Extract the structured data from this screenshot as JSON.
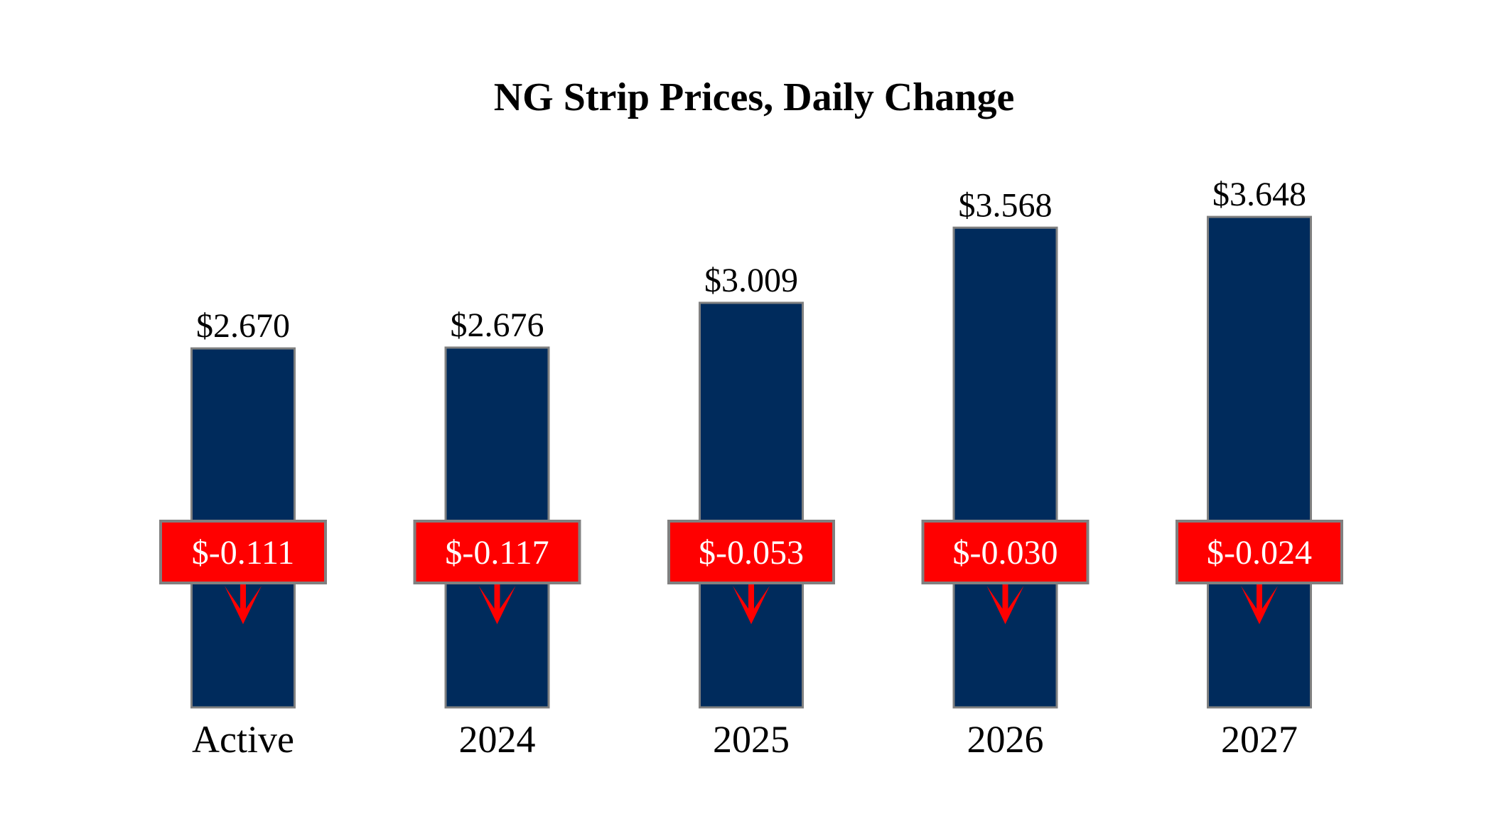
{
  "chart_data": {
    "type": "bar",
    "title": "NG Strip Prices, Daily Change",
    "categories": [
      "Active",
      "2024",
      "2025",
      "2026",
      "2027"
    ],
    "values": [
      2.67,
      2.676,
      3.009,
      3.568,
      3.648
    ],
    "value_labels": [
      "$2.670",
      "$2.676",
      "$3.009",
      "$3.568",
      "$3.648"
    ],
    "changes": [
      -0.111,
      -0.117,
      -0.053,
      -0.03,
      -0.024
    ],
    "change_labels": [
      "$-0.111",
      "$-0.117",
      "$-0.053",
      "$-0.030",
      "$-0.024"
    ],
    "change_direction_icon": "arrow-down-icon",
    "xlabel": "",
    "ylabel": "",
    "ylim": [
      0,
      4.5
    ],
    "grid": false,
    "colors": {
      "bar": "#002B5C",
      "bar_border": "#808080",
      "change_box": "#FF0000",
      "change_text": "#FFFFFF",
      "arrow": "#FF0000"
    }
  }
}
